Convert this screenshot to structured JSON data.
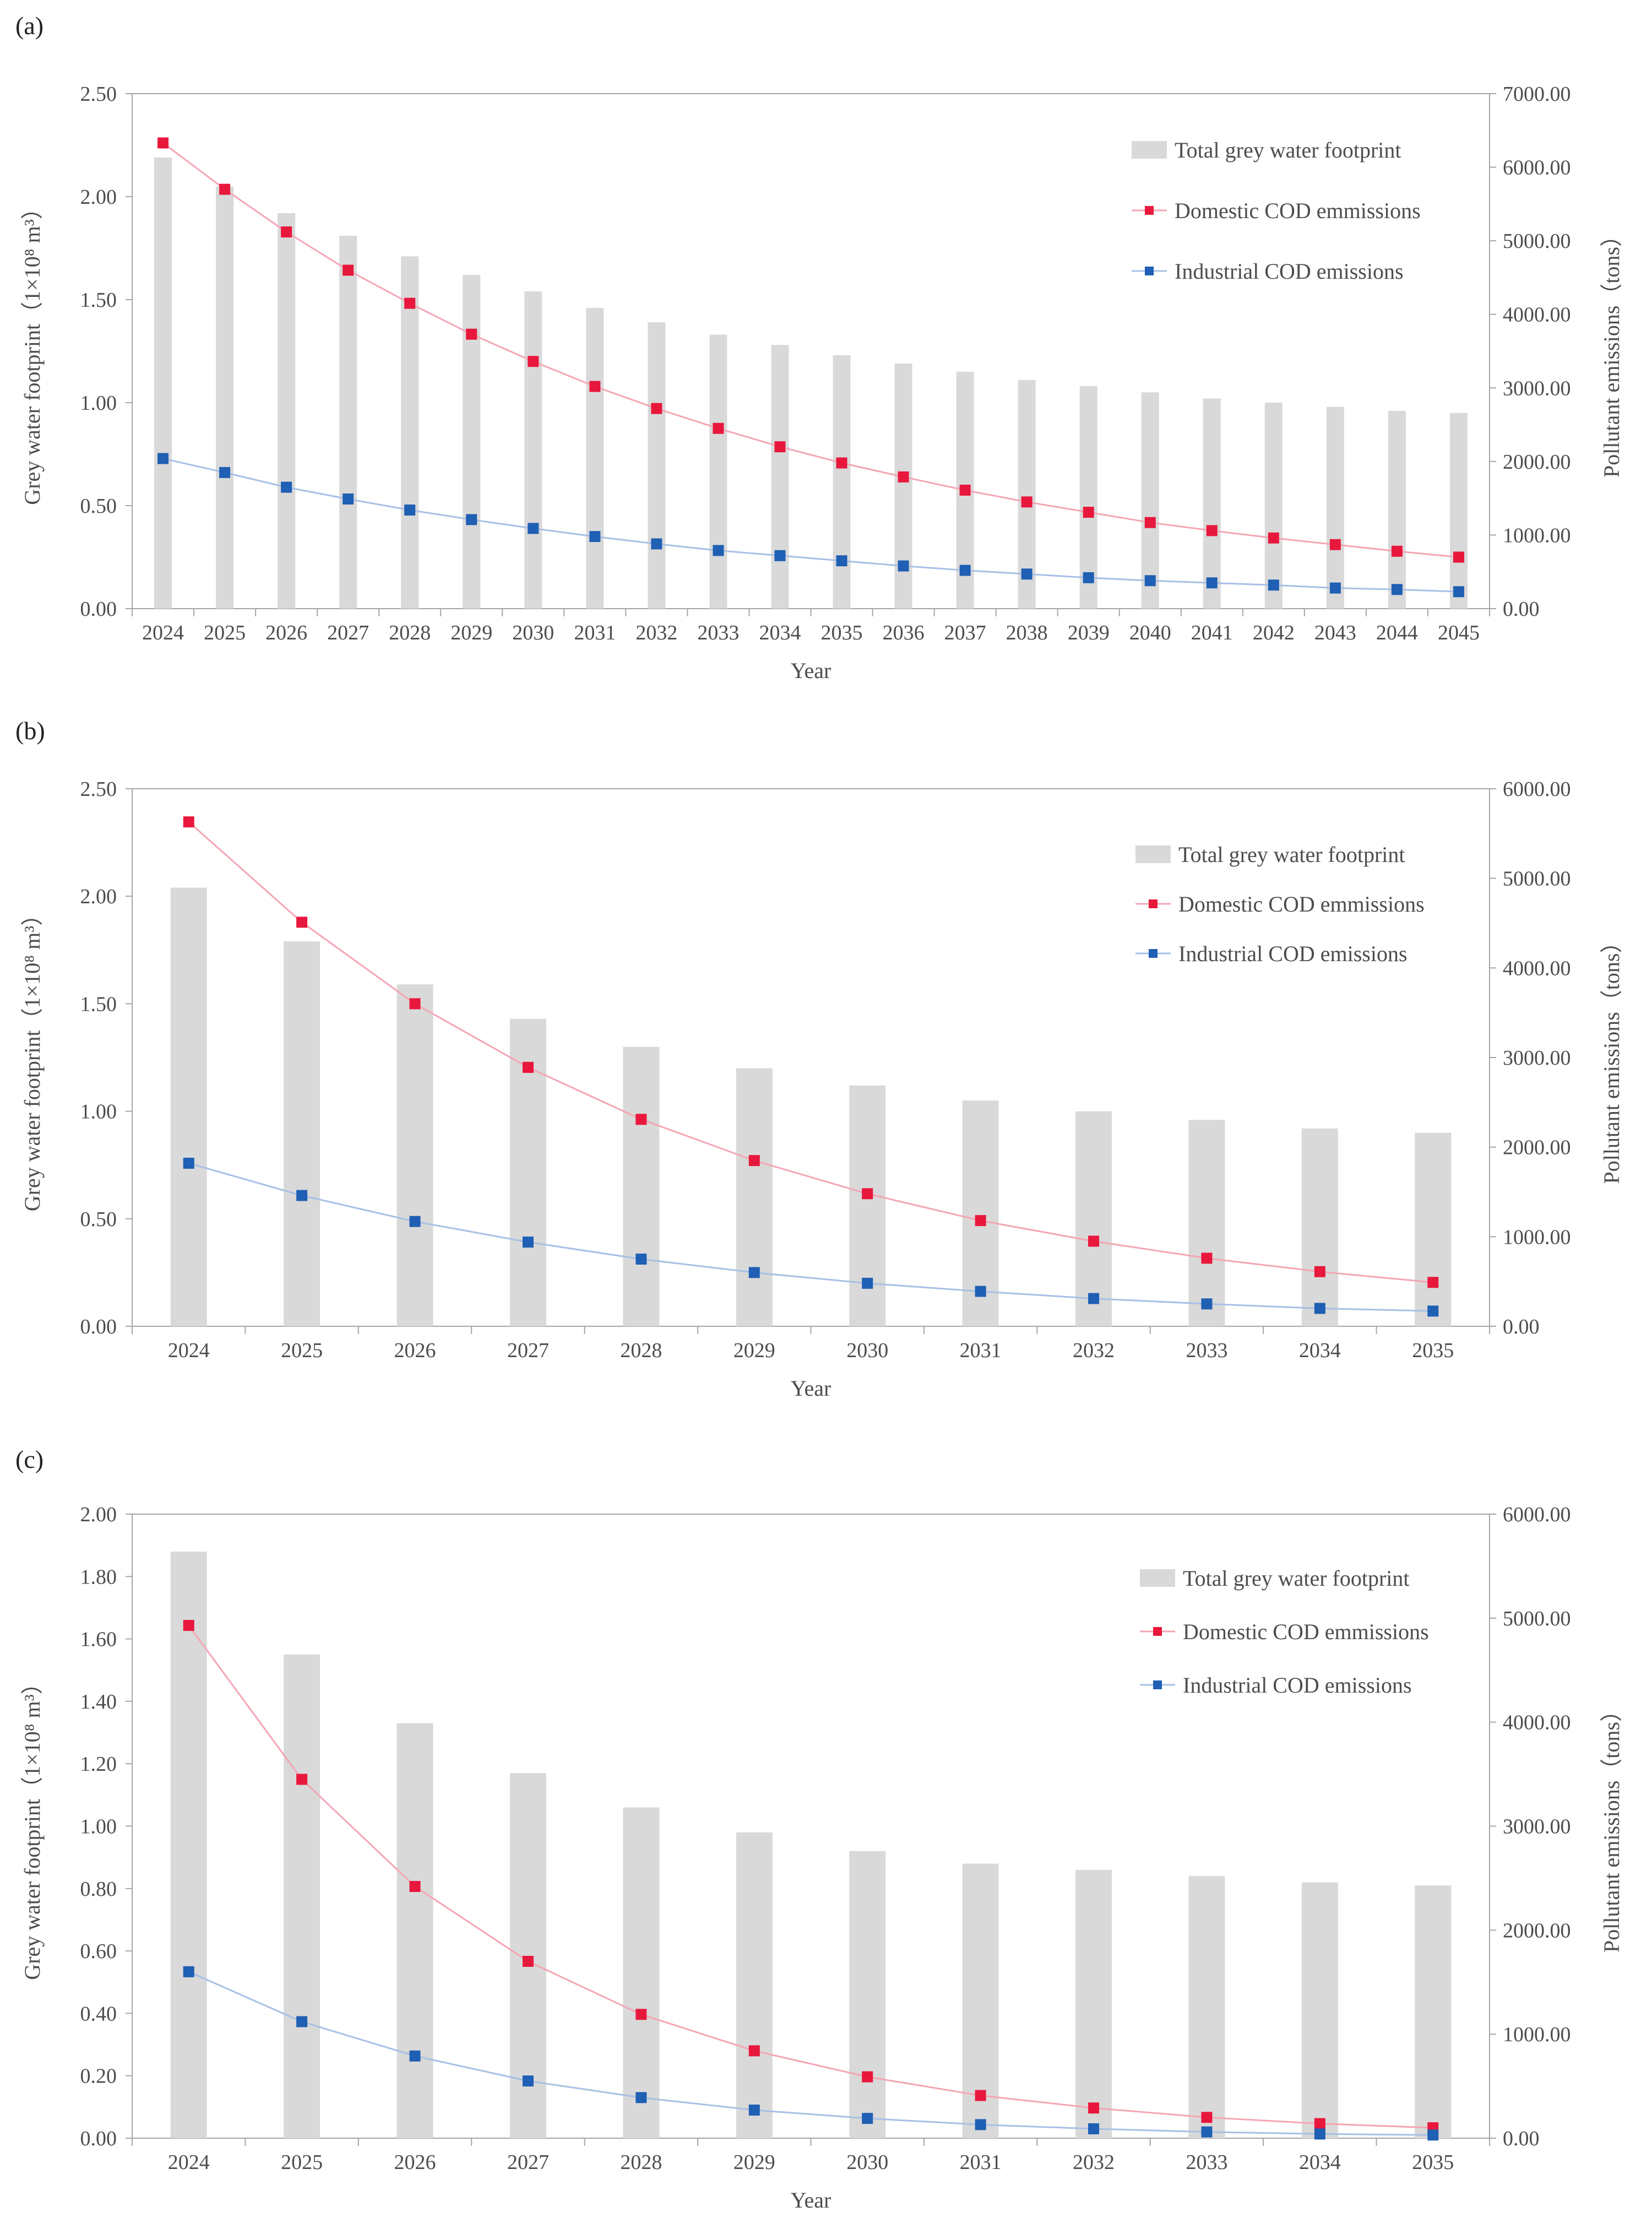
{
  "colors": {
    "bar": "#d9d9d9",
    "domestic": "#e8183c",
    "domestic_line": "#f4a6b4",
    "industrial": "#1f5fb4",
    "industrial_line": "#a8c0e6",
    "axis": "#a6a6a6",
    "text": "#4d4d4d"
  },
  "chart_data": [
    {
      "panel_label": "(a)",
      "type": "bar",
      "categories": [
        "2024",
        "2025",
        "2026",
        "2027",
        "2028",
        "2029",
        "2030",
        "2031",
        "2032",
        "2033",
        "2034",
        "2035",
        "2036",
        "2037",
        "2038",
        "2039",
        "2040",
        "2041",
        "2042",
        "2043",
        "2044",
        "2045"
      ],
      "xlabel": "Year",
      "ylabel": "Grey water footprint（1×10⁸ m³）",
      "y2label": "Pollutant emissions（tons）",
      "ylim": [
        0,
        2.5
      ],
      "y_ticks": [
        "0.00",
        "0.50",
        "1.00",
        "1.50",
        "2.00",
        "2.50"
      ],
      "y2lim": [
        0,
        7000
      ],
      "y2_ticks": [
        "0.00",
        "1000.00",
        "2000.00",
        "3000.00",
        "4000.00",
        "5000.00",
        "6000.00",
        "7000.00"
      ],
      "legend_position": "top-right",
      "legend": [
        "Total grey water footprint",
        "Domestic COD emmissions",
        "Industrial COD emissions"
      ],
      "series": [
        {
          "name": "Total grey water footprint",
          "type": "bar",
          "axis": "left",
          "values": [
            2.19,
            2.05,
            1.92,
            1.81,
            1.71,
            1.62,
            1.54,
            1.46,
            1.39,
            1.33,
            1.28,
            1.23,
            1.19,
            1.15,
            1.11,
            1.08,
            1.05,
            1.02,
            1.0,
            0.98,
            0.96,
            0.95
          ]
        },
        {
          "name": "Domestic COD emmissions",
          "type": "line",
          "axis": "right",
          "values": [
            6330,
            5700,
            5120,
            4600,
            4150,
            3730,
            3360,
            3020,
            2720,
            2450,
            2200,
            1980,
            1790,
            1610,
            1450,
            1310,
            1170,
            1060,
            960,
            870,
            780,
            700
          ]
        },
        {
          "name": "Industrial COD emissions",
          "type": "line",
          "axis": "right",
          "values": [
            2040,
            1850,
            1650,
            1490,
            1340,
            1210,
            1090,
            980,
            880,
            790,
            720,
            650,
            580,
            520,
            470,
            420,
            380,
            350,
            320,
            280,
            260,
            230
          ]
        }
      ]
    },
    {
      "panel_label": "(b)",
      "type": "bar",
      "categories": [
        "2024",
        "2025",
        "2026",
        "2027",
        "2028",
        "2029",
        "2030",
        "2031",
        "2032",
        "2033",
        "2034",
        "2035"
      ],
      "xlabel": "Year",
      "ylabel": "Grey water footprint（1×10⁸ m³）",
      "y2label": "Pollutant emissions（tons）",
      "ylim": [
        0,
        2.5
      ],
      "y_ticks": [
        "0.00",
        "0.50",
        "1.00",
        "1.50",
        "2.00",
        "2.50"
      ],
      "y2lim": [
        0,
        6000
      ],
      "y2_ticks": [
        "0.00",
        "1000.00",
        "2000.00",
        "3000.00",
        "4000.00",
        "5000.00",
        "6000.00"
      ],
      "legend_position": "top-right",
      "legend": [
        "Total grey water footprint",
        "Domestic COD emmissions",
        "Industrial COD emissions"
      ],
      "series": [
        {
          "name": "Total grey water footprint",
          "type": "bar",
          "axis": "left",
          "values": [
            2.04,
            1.79,
            1.59,
            1.43,
            1.3,
            1.2,
            1.12,
            1.05,
            1.0,
            0.96,
            0.92,
            0.9
          ]
        },
        {
          "name": "Domestic COD emmissions",
          "type": "line",
          "axis": "right",
          "values": [
            5630,
            4510,
            3600,
            2890,
            2310,
            1850,
            1480,
            1180,
            950,
            760,
            610,
            490
          ]
        },
        {
          "name": "Industrial COD emissions",
          "type": "line",
          "axis": "right",
          "values": [
            1820,
            1460,
            1170,
            940,
            750,
            600,
            480,
            390,
            310,
            250,
            200,
            170
          ]
        }
      ]
    },
    {
      "panel_label": "(c)",
      "type": "bar",
      "categories": [
        "2024",
        "2025",
        "2026",
        "2027",
        "2028",
        "2029",
        "2030",
        "2031",
        "2032",
        "2033",
        "2034",
        "2035"
      ],
      "xlabel": "Year",
      "ylabel": "Grey water footprint（1×10⁸ m³）",
      "y2label": "Pollutant emissions（tons）",
      "ylim": [
        0,
        2.0
      ],
      "y_ticks": [
        "0.00",
        "0.20",
        "0.40",
        "0.60",
        "0.80",
        "1.00",
        "1.20",
        "1.40",
        "1.60",
        "1.80",
        "2.00"
      ],
      "y2lim": [
        0,
        6000
      ],
      "y2_ticks": [
        "0.00",
        "1000.00",
        "2000.00",
        "3000.00",
        "4000.00",
        "5000.00",
        "6000.00"
      ],
      "legend_position": "top-right",
      "legend": [
        "Total grey water footprint",
        "Domestic COD emmissions",
        "Industrial COD emissions"
      ],
      "series": [
        {
          "name": "Total grey water footprint",
          "type": "bar",
          "axis": "left",
          "values": [
            1.88,
            1.55,
            1.33,
            1.17,
            1.06,
            0.98,
            0.92,
            0.88,
            0.86,
            0.84,
            0.82,
            0.81
          ]
        },
        {
          "name": "Domestic COD emmissions",
          "type": "line",
          "axis": "right",
          "values": [
            4930,
            3450,
            2420,
            1700,
            1190,
            840,
            590,
            410,
            290,
            200,
            140,
            100
          ]
        },
        {
          "name": "Industrial COD emissions",
          "type": "line",
          "axis": "right",
          "values": [
            1600,
            1120,
            790,
            550,
            390,
            270,
            190,
            130,
            90,
            60,
            40,
            30
          ]
        }
      ]
    }
  ]
}
